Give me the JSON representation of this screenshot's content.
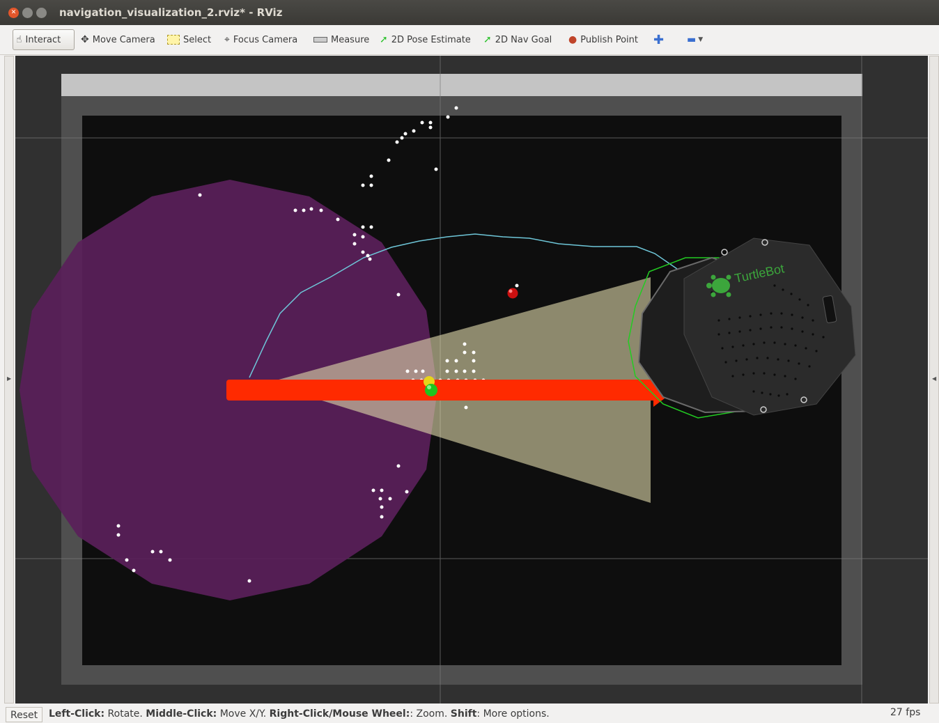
{
  "window": {
    "title": "navigation_visualization_2.rviz* - RViz"
  },
  "toolbar": {
    "tools": [
      {
        "label": "Interact",
        "icon": "hand-pointer-icon"
      },
      {
        "label": "Move Camera",
        "icon": "move-camera-icon"
      },
      {
        "label": "Select",
        "icon": "select-box-icon"
      },
      {
        "label": "Focus Camera",
        "icon": "focus-camera-icon"
      },
      {
        "label": "Measure",
        "icon": "ruler-icon"
      },
      {
        "label": "2D Pose Estimate",
        "icon": "green-arrow-icon"
      },
      {
        "label": "2D Nav Goal",
        "icon": "green-arrow-icon"
      },
      {
        "label": "Publish Point",
        "icon": "map-pin-icon"
      }
    ],
    "add_tool_icon": "plus-icon",
    "remove_tool_icon": "minus-icon"
  },
  "viewport": {
    "robot_logo_text": "TurtleBot",
    "colors": {
      "background": "#303030",
      "map_free": "#0d0d0d",
      "map_border": "#505050",
      "costmap": "#5a1f5a",
      "laser_points": "#ffffff",
      "pose_arrow": "#ff2200",
      "path": "#6ec6d8",
      "camera_cone": "#dcd5a8",
      "robot_footprint": "#22cc22",
      "robot_body": "#2b2b2b",
      "turtlebot_logo": "#3ca63c",
      "goal_point": "#cc0000"
    }
  },
  "statusbar": {
    "reset_label": "Reset",
    "left_click_key": "Left-Click:",
    "left_click_desc": "Rotate.",
    "middle_click_key": "Middle-Click:",
    "middle_click_desc": "Move X/Y.",
    "right_click_key": "Right-Click/Mouse Wheel:",
    "right_click_desc": ": Zoom.",
    "shift_key": "Shift",
    "shift_desc": ": More options.",
    "fps": "27 fps"
  }
}
